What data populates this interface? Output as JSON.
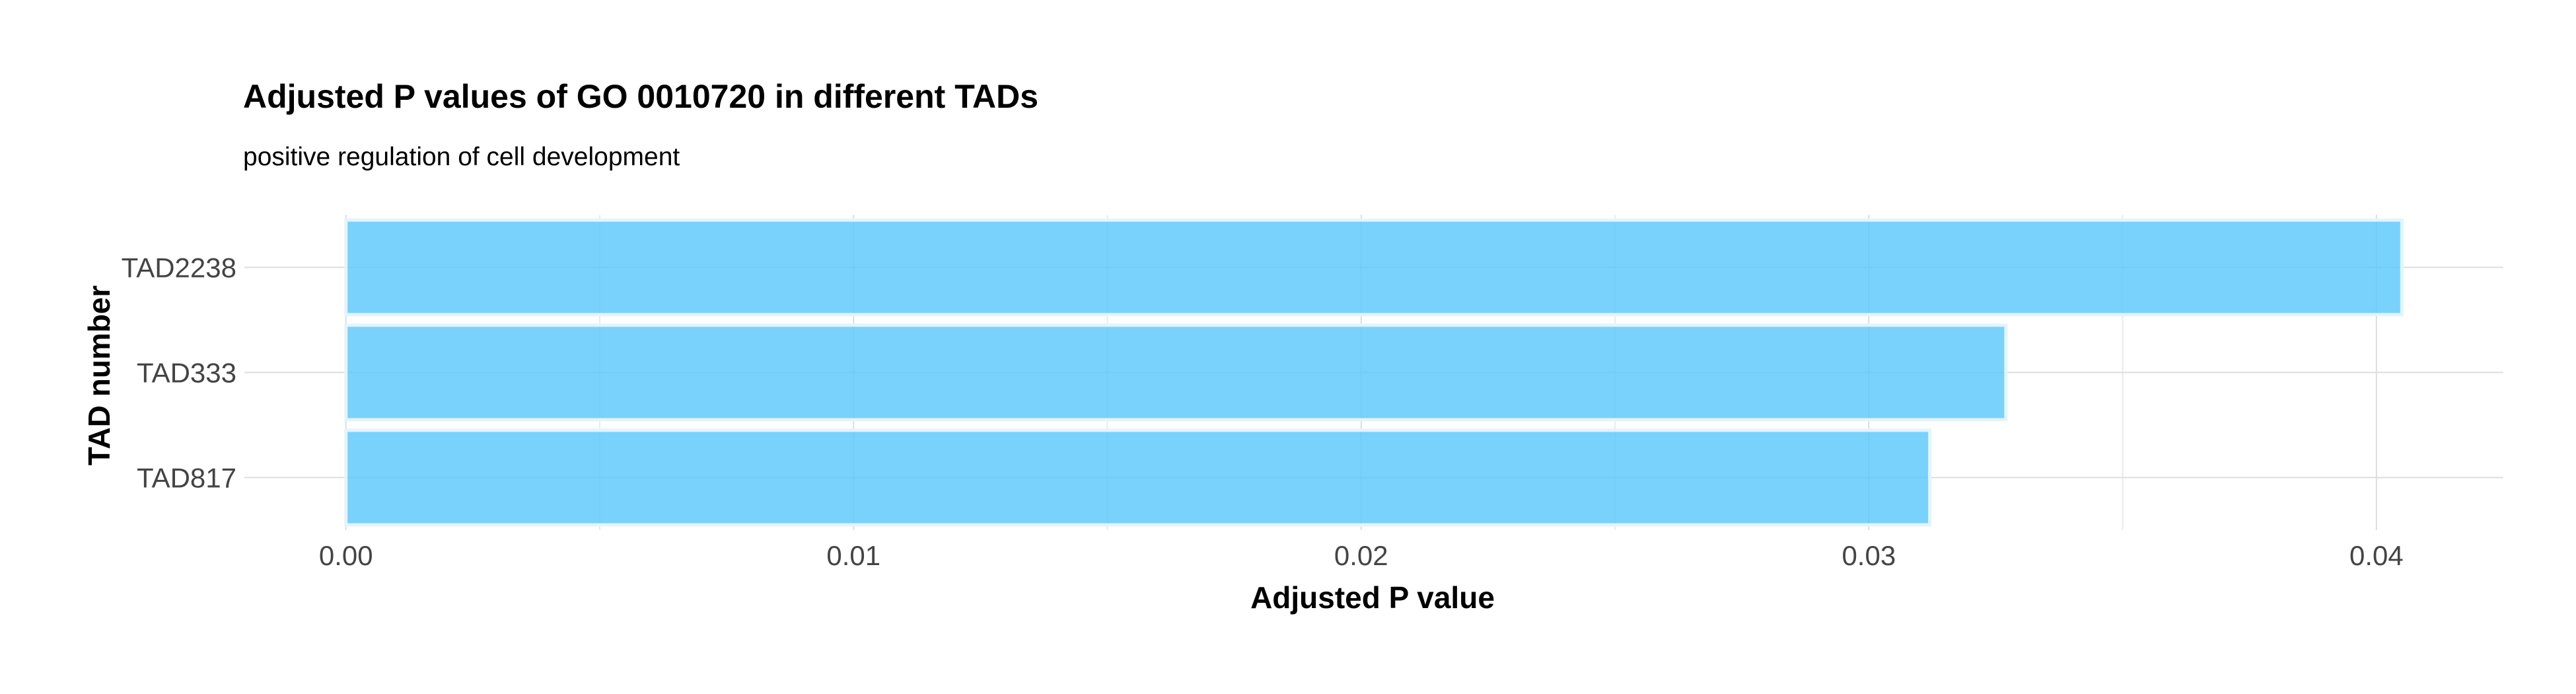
{
  "chart_data": {
    "type": "bar",
    "orientation": "horizontal",
    "title": "Adjusted P values of GO 0010720 in different TADs",
    "subtitle": "positive regulation of cell development",
    "xlabel": "Adjusted P value",
    "ylabel": "TAD number",
    "categories": [
      "TAD2238",
      "TAD333",
      "TAD817"
    ],
    "values": [
      0.0405,
      0.0327,
      0.0312
    ],
    "xlim": [
      -0.002,
      0.0425
    ],
    "xticks": [
      0.0,
      0.01,
      0.02,
      0.03,
      0.04
    ],
    "xtick_labels": [
      "0.00",
      "0.01",
      "0.02",
      "0.03",
      "0.04"
    ],
    "grid": true,
    "legend": "none",
    "bar_color": "#5ac8fa",
    "bar_edge_color": "#e3f4fd",
    "grid_color": "#dddddd"
  }
}
